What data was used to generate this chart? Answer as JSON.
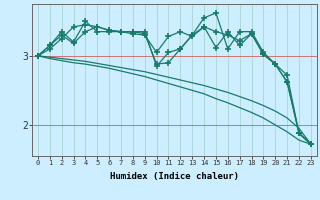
{
  "xlabel": "Humidex (Indice chaleur)",
  "background_color": "#cceeff",
  "line_color": "#1a7a6a",
  "grid_color": "#aad4d4",
  "x_data": [
    0,
    1,
    2,
    3,
    4,
    5,
    6,
    7,
    8,
    9,
    10,
    11,
    12,
    13,
    14,
    15,
    16,
    17,
    18,
    19,
    20,
    21,
    22,
    23
  ],
  "series_jagged1": [
    3.0,
    3.15,
    3.35,
    3.2,
    3.5,
    3.35,
    3.35,
    3.35,
    3.35,
    3.35,
    2.85,
    3.05,
    3.1,
    3.3,
    3.55,
    3.62,
    3.1,
    3.35,
    3.35,
    3.05,
    2.88,
    2.62,
    1.88,
    1.72
  ],
  "series_jagged2": [
    3.0,
    3.15,
    3.3,
    3.18,
    3.35,
    3.42,
    3.37,
    3.35,
    3.32,
    3.3,
    3.05,
    3.28,
    3.35,
    3.28,
    3.42,
    3.35,
    3.3,
    3.22,
    3.32,
    3.02,
    2.88,
    2.72,
    1.88,
    1.72
  ],
  "series_jagged3": [
    3.0,
    3.1,
    3.25,
    3.42,
    3.45,
    3.42,
    3.37,
    3.35,
    3.35,
    3.32,
    2.88,
    2.9,
    3.1,
    3.3,
    3.42,
    3.12,
    3.35,
    3.15,
    3.32,
    3.02,
    2.88,
    2.62,
    1.88,
    1.72
  ],
  "series_smooth1": [
    3.0,
    2.96,
    2.93,
    2.9,
    2.88,
    2.85,
    2.82,
    2.78,
    2.74,
    2.7,
    2.65,
    2.6,
    2.55,
    2.5,
    2.45,
    2.38,
    2.32,
    2.25,
    2.18,
    2.1,
    2.0,
    1.9,
    1.78,
    1.72
  ],
  "series_smooth2": [
    3.0,
    2.98,
    2.96,
    2.94,
    2.92,
    2.89,
    2.86,
    2.83,
    2.8,
    2.77,
    2.73,
    2.69,
    2.65,
    2.61,
    2.57,
    2.52,
    2.47,
    2.41,
    2.35,
    2.28,
    2.2,
    2.1,
    1.95,
    1.72
  ],
  "ylim": [
    1.55,
    3.75
  ],
  "xlim": [
    -0.5,
    23.5
  ],
  "ytick_positions": [
    2,
    3
  ],
  "ytick_labels": [
    "2",
    "3"
  ],
  "xtick_labels": [
    "0",
    "1",
    "2",
    "3",
    "4",
    "5",
    "6",
    "7",
    "8",
    "9",
    "10",
    "11",
    "12",
    "13",
    "14",
    "15",
    "16",
    "17",
    "18",
    "19",
    "20",
    "21",
    "22",
    "23"
  ],
  "marker": "+",
  "markersize": 5,
  "markeredgewidth": 1.2,
  "linewidth": 0.9
}
